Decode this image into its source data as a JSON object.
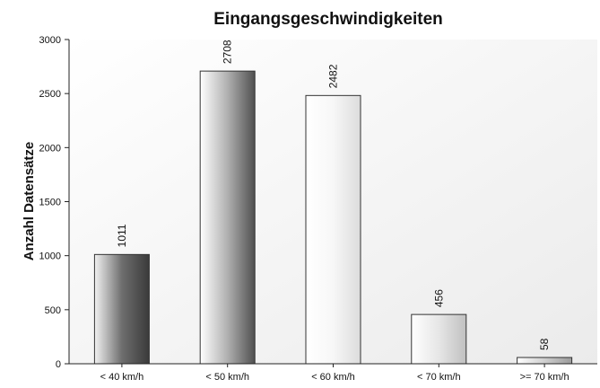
{
  "chart_data": {
    "type": "bar",
    "title": "Eingangsgeschwindigkeiten",
    "xlabel": "",
    "ylabel": "Anzahl Datensätze",
    "categories": [
      "< 40 km/h",
      "< 50 km/h",
      "< 60 km/h",
      "< 70 km/h",
      ">= 70 km/h"
    ],
    "values": [
      1011,
      2708,
      2482,
      456,
      58
    ],
    "data_labels": [
      "1011",
      "2708",
      "2482",
      "456",
      "58"
    ],
    "ylim": [
      0,
      3000
    ],
    "yticks": [
      0,
      500,
      1000,
      1500,
      2000,
      2500,
      3000
    ],
    "grid": false,
    "legend": "none",
    "bar_gradients": [
      [
        "#f2f2f2",
        "#6e6e6e",
        "#3a3a3a"
      ],
      [
        "#ffffff",
        "#b0b0b0",
        "#505050"
      ],
      [
        "#ffffff",
        "#f7f7f7",
        "#dcdcdc"
      ],
      [
        "#ffffff",
        "#e6e6e6",
        "#c0c0c0"
      ],
      [
        "#ffffff",
        "#d0d0d0",
        "#9a9a9a"
      ]
    ],
    "bar_stroke": "#333333",
    "background": "#f6f6f6"
  }
}
